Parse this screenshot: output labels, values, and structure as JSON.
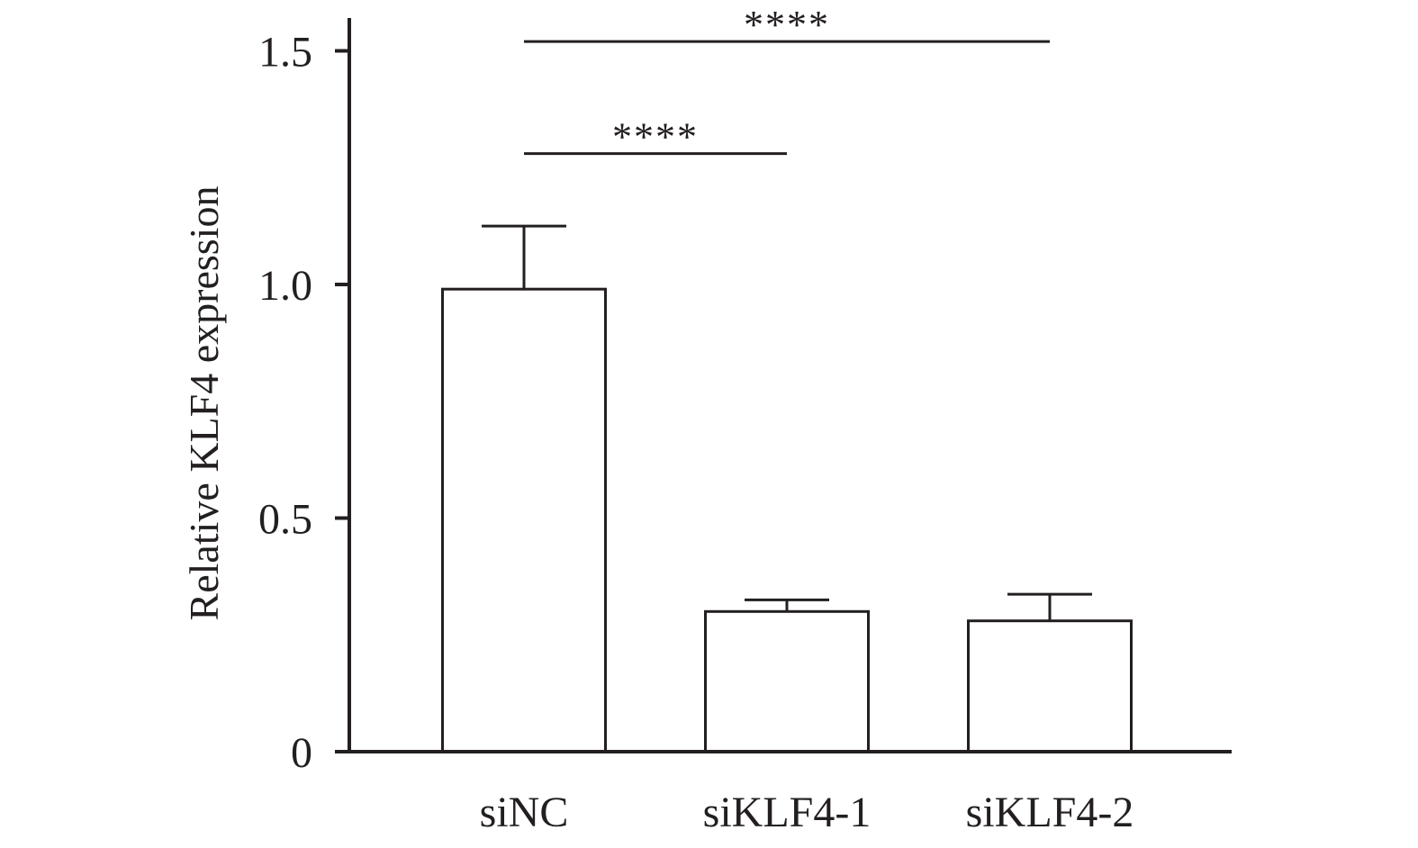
{
  "chart_data": {
    "type": "bar",
    "title": "",
    "xlabel": "",
    "ylabel": "Relative KLF4 expression",
    "categories": [
      "siNC",
      "siKLF4-1",
      "siKLF4-2"
    ],
    "values": [
      0.99,
      0.3,
      0.28
    ],
    "errors": [
      0.135,
      0.025,
      0.057
    ],
    "ylim": [
      0,
      1.6
    ],
    "yticks": [
      {
        "value": 0,
        "label": "0"
      },
      {
        "value": 0.5,
        "label": "0.5"
      },
      {
        "value": 1.0,
        "label": "1.0"
      },
      {
        "value": 1.5,
        "label": "1.5"
      }
    ],
    "grid": false,
    "bar_fill": "#ffffff",
    "line_color": "#231f20",
    "significance": [
      {
        "from": 0,
        "to": 1,
        "y": 1.28,
        "label": "****"
      },
      {
        "from": 0,
        "to": 2,
        "y": 1.52,
        "label": "****"
      }
    ]
  }
}
